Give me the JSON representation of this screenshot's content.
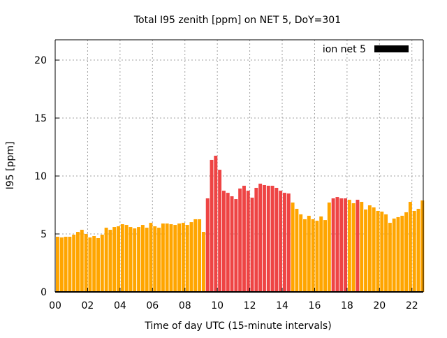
{
  "chart_data": {
    "type": "bar",
    "title": "Total I95 zenith [ppm] on NET 5, DoY=301",
    "xlabel": "Time of day UTC (15-minute intervals)",
    "ylabel": "I95 [ppm]",
    "xlim": [
      0,
      22.7
    ],
    "ylim": [
      0,
      21.75
    ],
    "x_step_hours": 0.25,
    "xticks": [
      0,
      2,
      4,
      6,
      8,
      10,
      12,
      14,
      16,
      18,
      20,
      22
    ],
    "xtick_labels": [
      "00",
      "02",
      "04",
      "06",
      "08",
      "10",
      "12",
      "14",
      "16",
      "18",
      "20",
      "22"
    ],
    "yticks": [
      0,
      5,
      10,
      15,
      20
    ],
    "ytick_labels": [
      "0",
      "5",
      "10",
      "15",
      "20"
    ],
    "grid": true,
    "legend": {
      "label": "ion net 5",
      "placement": "top-right",
      "color": "#000000"
    },
    "colors": {
      "normal": "#ffa500",
      "high": "#ee4444"
    },
    "high_indices": [
      37,
      38,
      39,
      40,
      41,
      42,
      43,
      44,
      45,
      46,
      47,
      48,
      49,
      50,
      51,
      52,
      53,
      54,
      55,
      56,
      57,
      68,
      69,
      70,
      71,
      74
    ],
    "values": [
      4.76,
      4.7,
      4.76,
      4.76,
      4.94,
      5.18,
      5.36,
      5.0,
      4.7,
      4.82,
      4.64,
      4.94,
      5.54,
      5.36,
      5.6,
      5.66,
      5.84,
      5.78,
      5.6,
      5.48,
      5.6,
      5.78,
      5.54,
      5.96,
      5.66,
      5.54,
      5.9,
      5.9,
      5.84,
      5.78,
      5.9,
      5.96,
      5.78,
      6.02,
      6.27,
      6.27,
      5.18,
      8.07,
      11.39,
      11.75,
      10.54,
      8.73,
      8.55,
      8.25,
      8.01,
      8.92,
      9.16,
      8.73,
      8.13,
      8.98,
      9.34,
      9.22,
      9.16,
      9.16,
      8.98,
      8.73,
      8.55,
      8.49,
      7.71,
      7.17,
      6.69,
      6.27,
      6.57,
      6.27,
      6.14,
      6.51,
      6.2,
      7.71,
      8.07,
      8.19,
      8.07,
      8.07,
      7.95,
      7.65,
      7.95,
      7.77,
      7.11,
      7.47,
      7.29,
      6.99,
      6.93,
      6.69,
      5.96,
      6.33,
      6.45,
      6.57,
      6.87,
      7.77,
      6.99,
      7.17,
      7.89
    ]
  }
}
